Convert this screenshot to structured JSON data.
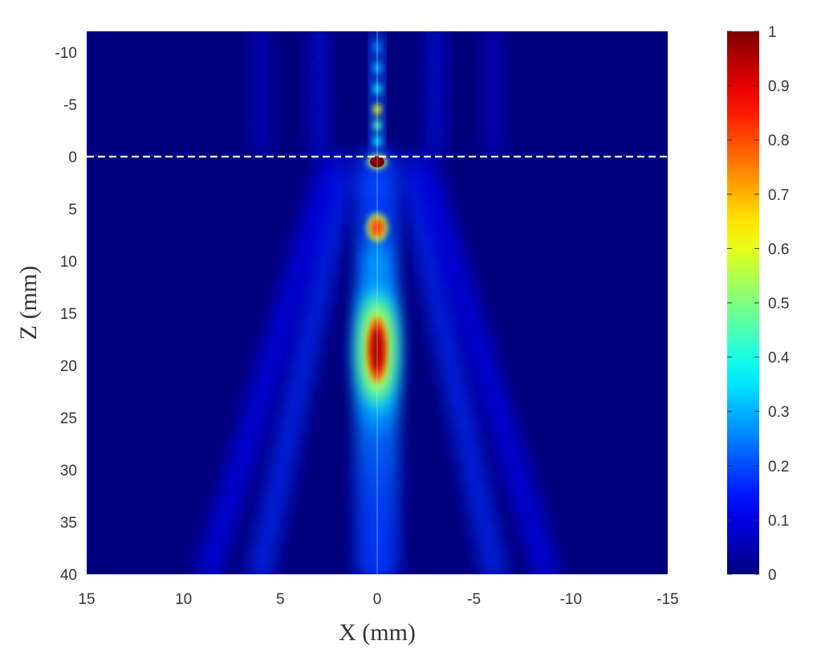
{
  "chart_data": {
    "type": "heatmap",
    "title": "",
    "xlabel": "X (mm)",
    "ylabel": "Z (mm)",
    "xlim": [
      15,
      -15
    ],
    "ylim": [
      -12,
      40
    ],
    "x_reversed": true,
    "y_reversed": true,
    "xticks": [
      15,
      10,
      5,
      0,
      -5,
      -10,
      -15
    ],
    "xtick_labels": [
      "15",
      "10",
      "5",
      "0",
      "-5",
      "-10",
      "-15"
    ],
    "yticks": [
      -10,
      -5,
      0,
      5,
      10,
      15,
      20,
      25,
      30,
      35,
      40
    ],
    "ytick_labels": [
      "-10",
      "-5",
      "0",
      "5",
      "10",
      "15",
      "20",
      "25",
      "30",
      "35",
      "40"
    ],
    "colormap": "jet",
    "clim": [
      0,
      1
    ],
    "colorbar_ticks": [
      0,
      0.1,
      0.2,
      0.3,
      0.4,
      0.5,
      0.6,
      0.7,
      0.8,
      0.9,
      1
    ],
    "colorbar_tick_labels": [
      "0",
      "0.1",
      "0.2",
      "0.3",
      "0.4",
      "0.5",
      "0.6",
      "0.7",
      "0.8",
      "0.9",
      "1"
    ],
    "reference_line": {
      "axis": "z",
      "value": 0,
      "style": "dashed",
      "color": "#ffffff"
    },
    "hotspots": [
      {
        "x": 0,
        "z": 0.5,
        "intensity": 1.0
      },
      {
        "x": 0,
        "z": 6.8,
        "intensity": 0.8
      },
      {
        "x": 0,
        "z": 18.5,
        "intensity": 0.95
      },
      {
        "x": 0,
        "z": -4.5,
        "intensity": 0.55
      }
    ],
    "colors": {
      "background": "#00007f",
      "jet_stops": [
        "#00007f",
        "#0000ff",
        "#007fff",
        "#00ffff",
        "#7fff7f",
        "#ffff00",
        "#ff7f00",
        "#ff0000",
        "#7f0000"
      ]
    }
  }
}
